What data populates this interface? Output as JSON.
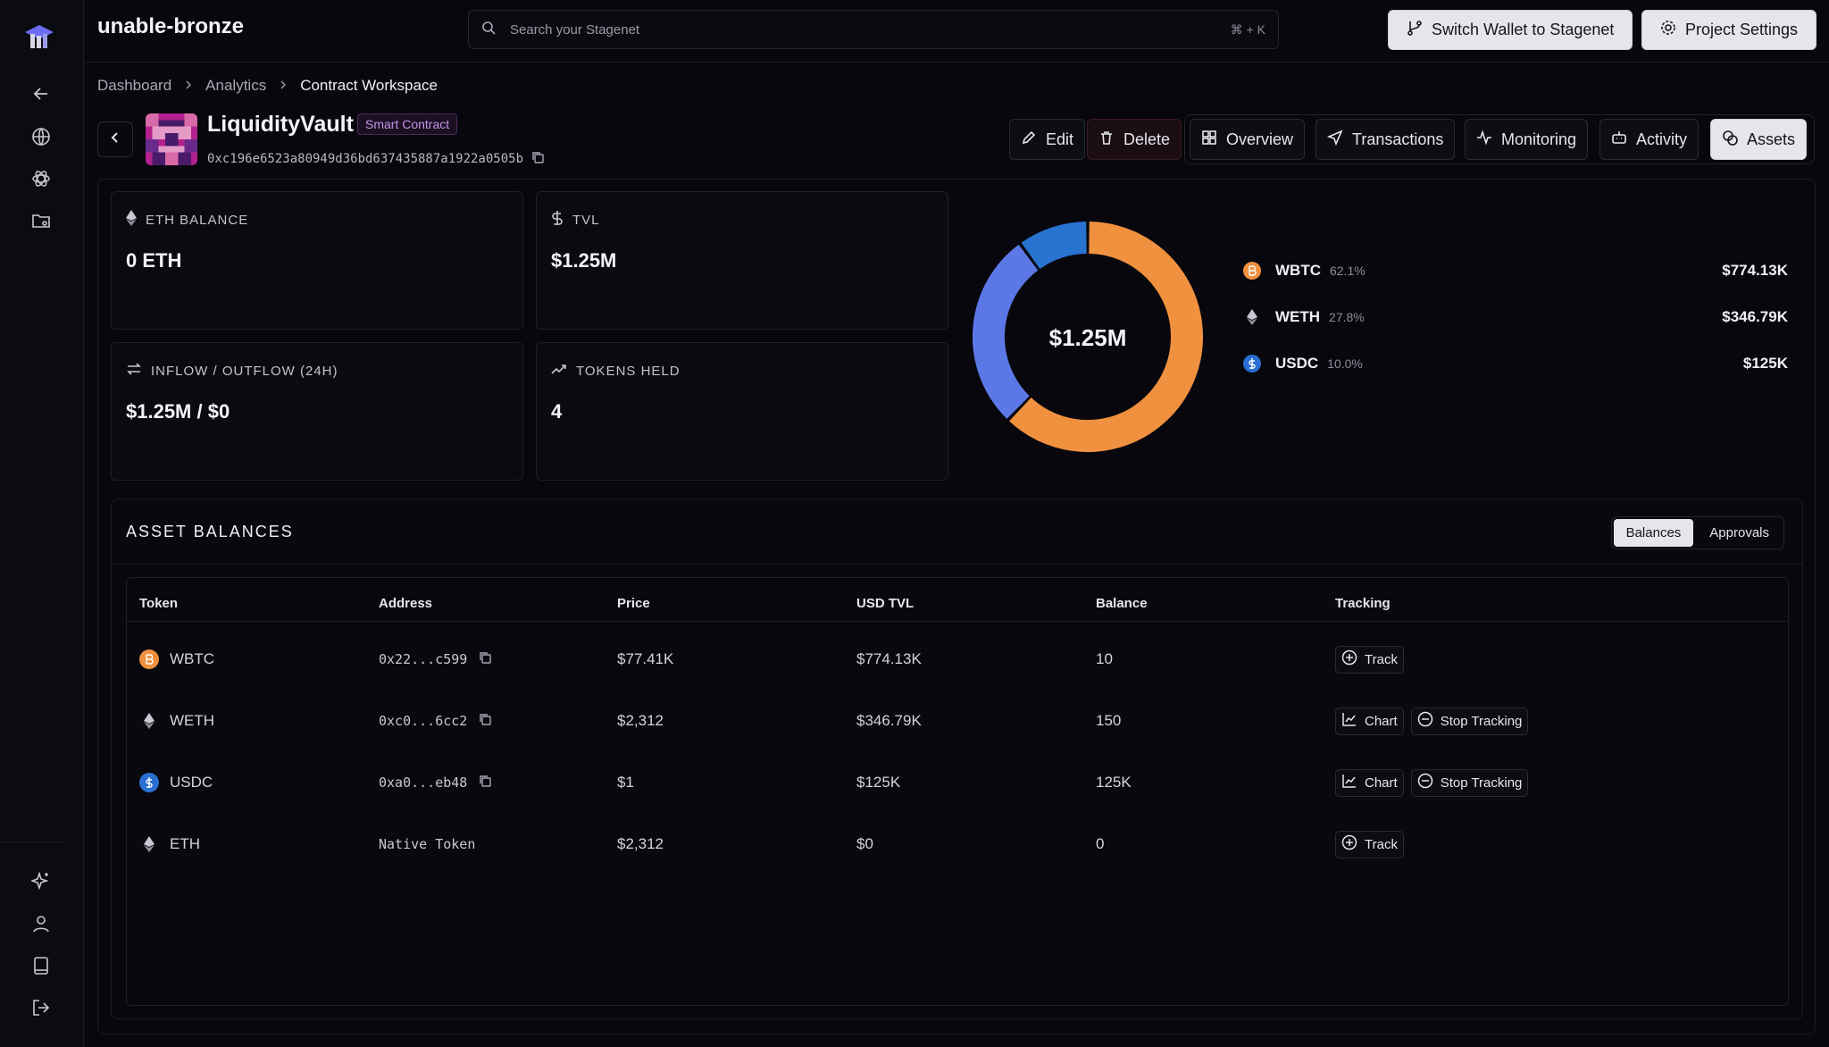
{
  "app": {
    "project_name": "unable-bronze"
  },
  "search": {
    "placeholder": "Search your Stagenet",
    "shortcut": "⌘ + K"
  },
  "top_actions": {
    "switch_wallet": "Switch Wallet to Stagenet",
    "project_settings": "Project Settings"
  },
  "breadcrumb": [
    "Dashboard",
    "Analytics",
    "Contract Workspace"
  ],
  "contract": {
    "name": "LiquidityVault",
    "badge": "Smart Contract",
    "address": "0xc196e6523a80949d36bd637435887a1922a0505b"
  },
  "header_actions": {
    "edit": "Edit",
    "delete": "Delete"
  },
  "tabs": [
    "Overview",
    "Transactions",
    "Monitoring",
    "Activity",
    "Assets"
  ],
  "active_tab": "Assets",
  "stats": {
    "eth_balance": {
      "label": "ETH BALANCE",
      "value": "0 ETH"
    },
    "tvl": {
      "label": "TVL",
      "value": "$1.25M"
    },
    "flow": {
      "label": "INFLOW / OUTFLOW (24H)",
      "value": "$1.25M / $0"
    },
    "tokens_held": {
      "label": "TOKENS HELD",
      "value": "4"
    }
  },
  "donut": {
    "center_label": "$1.25M"
  },
  "allocation": [
    {
      "symbol": "WBTC",
      "pct": "62.1%",
      "amount": "$774.13K",
      "share": 62.1,
      "color": "#f0913f"
    },
    {
      "symbol": "WETH",
      "pct": "27.8%",
      "amount": "$346.79K",
      "share": 27.8,
      "color": "#5b78e6"
    },
    {
      "symbol": "USDC",
      "pct": "10.0%",
      "amount": "$125K",
      "share": 10.0,
      "color": "#2872d0"
    }
  ],
  "asset_balances": {
    "title": "ASSET BALANCES",
    "toggle": [
      "Balances",
      "Approvals"
    ],
    "columns": [
      "Token",
      "Address",
      "Price",
      "USD TVL",
      "Balance",
      "Tracking"
    ],
    "rows": [
      {
        "token": "WBTC",
        "address": "0x22...c599",
        "price": "$77.41K",
        "usd_tvl": "$774.13K",
        "balance": "10",
        "actions": [
          "Track"
        ]
      },
      {
        "token": "WETH",
        "address": "0xc0...6cc2",
        "price": "$2,312",
        "usd_tvl": "$346.79K",
        "balance": "150",
        "actions": [
          "Chart",
          "Stop Tracking"
        ]
      },
      {
        "token": "USDC",
        "address": "0xa0...eb48",
        "price": "$1",
        "usd_tvl": "$125K",
        "balance": "125K",
        "actions": [
          "Chart",
          "Stop Tracking"
        ]
      },
      {
        "token": "ETH",
        "address": "Native Token",
        "price": "$2,312",
        "usd_tvl": "$0",
        "balance": "0",
        "actions": [
          "Track"
        ]
      }
    ]
  },
  "icons": [
    "logo-icon",
    "arrow-left-icon",
    "globe-icon",
    "atom-icon",
    "folder-icon",
    "sparkle-icon",
    "user-icon",
    "book-icon",
    "logout-icon"
  ]
}
